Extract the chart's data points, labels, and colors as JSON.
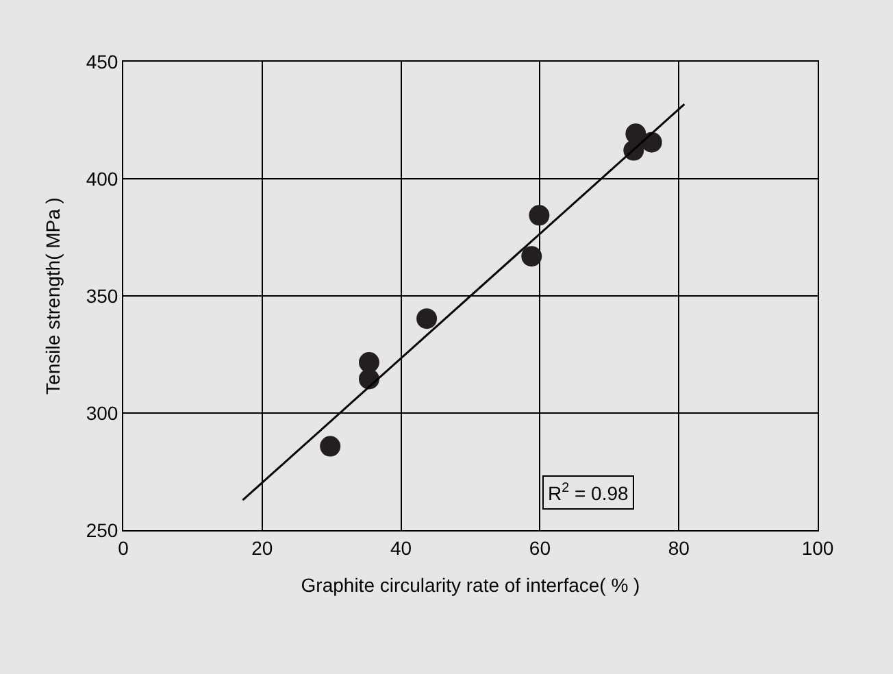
{
  "chart_data": {
    "type": "scatter",
    "xlabel": "Graphite circularity rate of interface( % )",
    "ylabel": "Tensile strength( MPa )",
    "xlim": [
      0,
      100
    ],
    "xticks": [
      0,
      20,
      40,
      60,
      80,
      100
    ],
    "ylim": [
      250,
      450
    ],
    "yticks": [
      250,
      300,
      350,
      400,
      450
    ],
    "grid": true,
    "legend": false,
    "series": [
      {
        "marker": "circle",
        "color": "#231f20",
        "x": [
          29.8,
          35.4,
          35.4,
          43.7,
          58.8,
          59.9,
          73.8,
          73.5,
          76.1
        ],
        "values": [
          285.8,
          321.6,
          314.5,
          340.3,
          366.9,
          384.4,
          419.2,
          412.1,
          415.6
        ]
      },
      {
        "type": "line",
        "color": "#000000",
        "x": [
          17.2,
          80.8
        ],
        "values": [
          262.8,
          431.8
        ]
      }
    ],
    "annotations": [
      "R$^{2}$ = 0.98"
    ]
  }
}
